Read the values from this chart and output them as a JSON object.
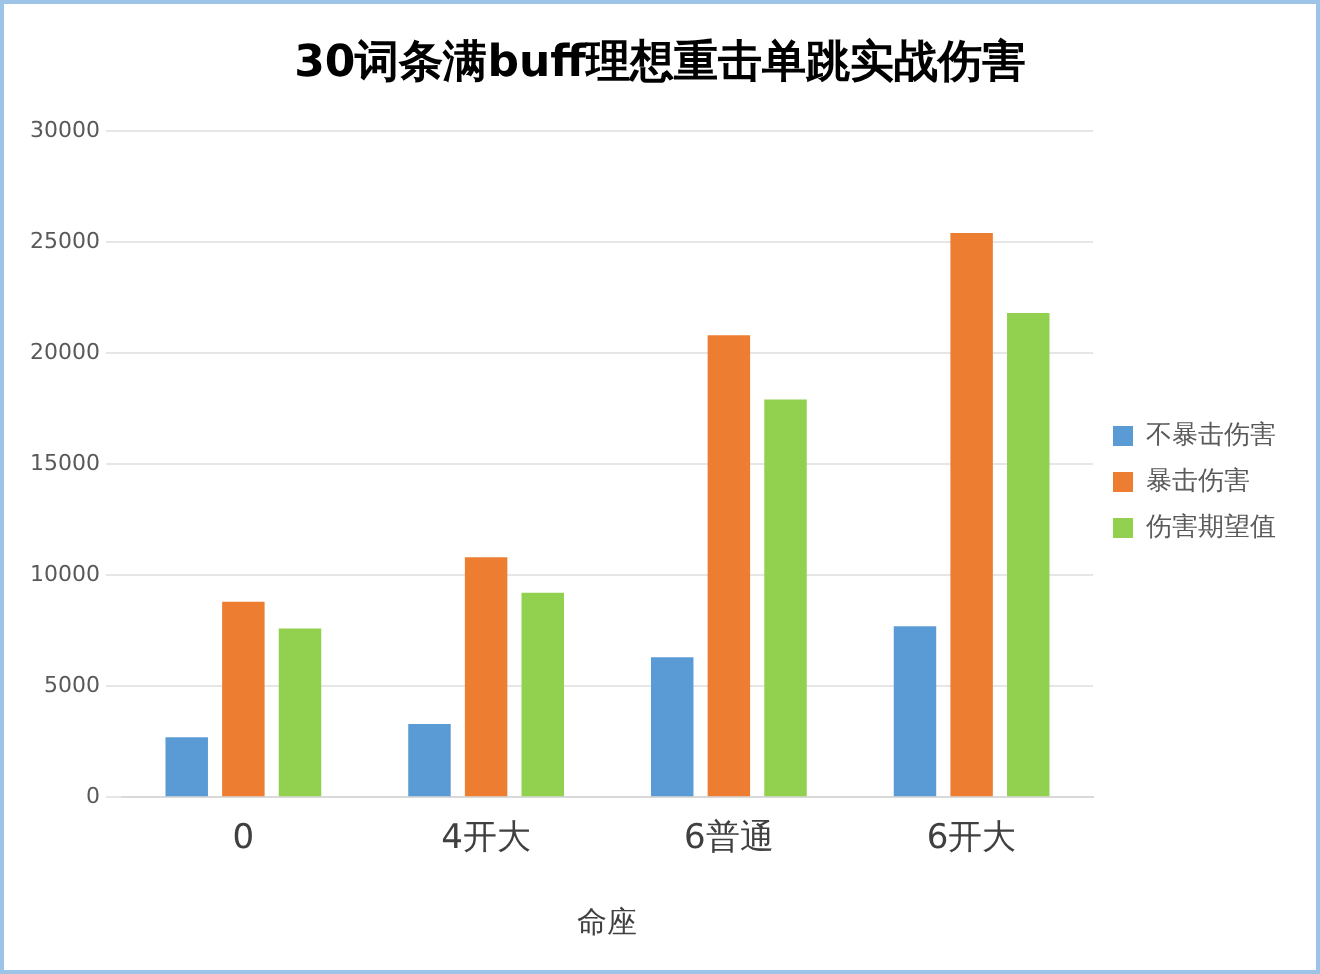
{
  "chart_data": {
    "type": "bar",
    "title": "30词条满buff理想重击单跳实战伤害",
    "xlabel": "命座",
    "categories": [
      "0",
      "4开大",
      "6普通",
      "6开大"
    ],
    "series": [
      {
        "name": "不暴击伤害",
        "color": "#5b9bd5",
        "values": [
          2700,
          3300,
          6300,
          7700
        ]
      },
      {
        "name": "暴击伤害",
        "color": "#ed7d31",
        "values": [
          8800,
          10800,
          20800,
          25400
        ]
      },
      {
        "name": "伤害期望值",
        "color": "#92d050",
        "values": [
          7600,
          9200,
          17900,
          21800
        ]
      }
    ],
    "ylim": [
      0,
      30000
    ],
    "yticks": [
      0,
      5000,
      10000,
      15000,
      20000,
      25000,
      30000
    ],
    "grid": "y",
    "legend": "right"
  }
}
